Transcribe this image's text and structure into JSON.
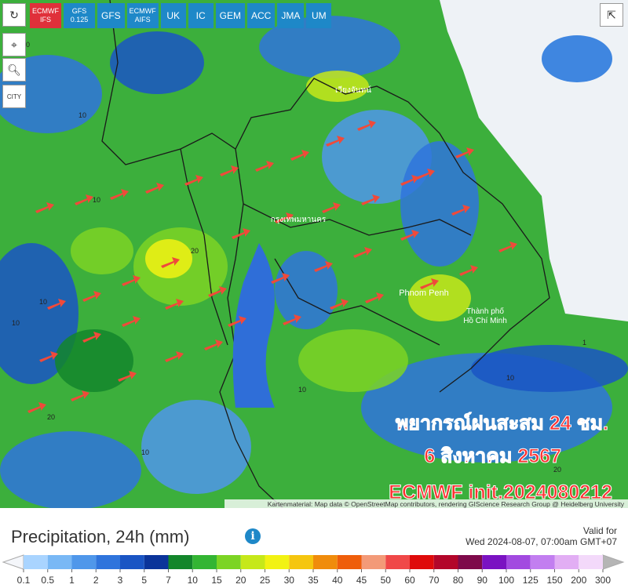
{
  "toolbar": {
    "models": [
      "ECMWF IFS",
      "GFS 0.125",
      "GFS",
      "ECMWF AIFS",
      "UK",
      "IC",
      "GEM",
      "ACC",
      "JMA",
      "UM"
    ],
    "active": "ECMWF IFS"
  },
  "sidebar": {
    "city": "CITY"
  },
  "map": {
    "places": [
      "เวียงจันทน์",
      "กรุงเทพมหานคร",
      "Phnom Penh",
      "Thành phố Hồ Chí Minh"
    ],
    "contour_labels": [
      "10",
      "10",
      "20",
      "10",
      "10",
      "10",
      "1",
      "20",
      "10",
      "10",
      "20",
      "10"
    ],
    "overlay": {
      "line1": "พยากรณ์ฝนสะสม 24 ชม.",
      "line2": "6 สิงหาคม 2567",
      "line3": "ECMWF init.2024080212"
    },
    "attribution": "Kartenmaterial: Map data © OpenStreetMap contributors, rendering GIScience Research Group @ Heidelberg University"
  },
  "legend": {
    "title": "Precipitation, 24h (mm)",
    "valid_label": "Valid for",
    "valid_time": "Wed 2024-08-07, 07:00am GMT+07",
    "ticks": [
      0.1,
      0.5,
      1,
      2,
      3,
      5,
      7,
      10,
      15,
      20,
      25,
      30,
      35,
      40,
      45,
      50,
      60,
      70,
      80,
      90,
      100,
      125,
      150,
      200,
      300
    ],
    "colors": [
      "#a9d4ff",
      "#79b8f5",
      "#4f97ea",
      "#2f74dc",
      "#1a55c4",
      "#0b349a",
      "#13862b",
      "#33b533",
      "#7cd424",
      "#c6e81a",
      "#f2f213",
      "#f5c60f",
      "#f08c0c",
      "#ef5e0b",
      "#f39a78",
      "#f04848",
      "#df0b0b",
      "#b3062a",
      "#7e0a4b",
      "#7a12c2",
      "#a24ae0",
      "#c27ef0",
      "#e2aef4",
      "#f3d9fa"
    ]
  }
}
